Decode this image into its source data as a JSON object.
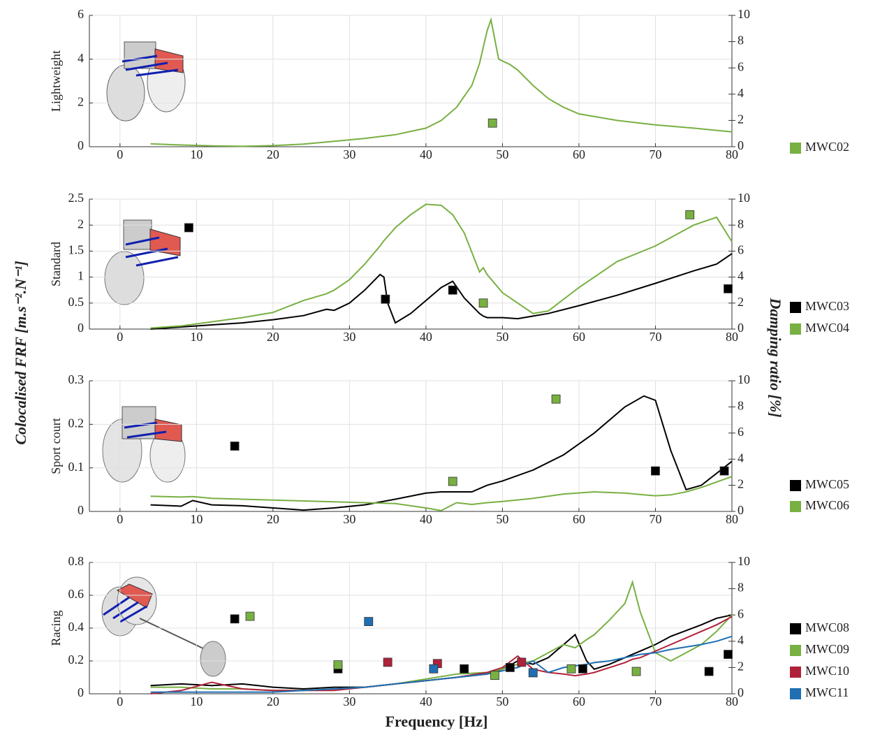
{
  "figure": {
    "xlabel": "Frequency [Hz]",
    "ylabel": "Colocalised FRF [m.s⁻².N⁻¹]",
    "y2label": "Damping ratio [%]"
  },
  "chart_data": [
    {
      "type": "line",
      "ylabel": "Lightweight",
      "xlim": [
        -4,
        80
      ],
      "xticks": [
        0,
        10,
        20,
        30,
        40,
        50,
        60,
        70,
        80
      ],
      "ylim": [
        0,
        6
      ],
      "yticks": [
        0,
        2,
        4,
        6
      ],
      "y2lim": [
        0,
        10
      ],
      "y2ticks": [
        0,
        2,
        4,
        6,
        8,
        10
      ],
      "grid": true,
      "x": [
        4,
        8,
        12,
        16,
        20,
        24,
        28,
        32,
        36,
        40,
        42,
        44,
        46,
        47,
        48,
        48.5,
        49.5,
        51,
        52,
        54,
        56,
        58,
        60,
        65,
        70,
        75,
        80
      ],
      "series": [
        {
          "name": "MWC02",
          "color": "#78b042",
          "values": [
            0.13,
            0.08,
            0.04,
            0.02,
            0.05,
            0.12,
            0.25,
            0.38,
            0.55,
            0.85,
            1.2,
            1.8,
            2.8,
            3.8,
            5.3,
            5.8,
            4.0,
            3.75,
            3.5,
            2.8,
            2.2,
            1.8,
            1.5,
            1.2,
            1.0,
            0.85,
            0.68
          ],
          "damping_x": [
            48.7
          ],
          "damping": [
            1.8
          ]
        }
      ]
    },
    {
      "type": "line",
      "ylabel": "Standard",
      "xlim": [
        -4,
        80
      ],
      "xticks": [
        0,
        10,
        20,
        30,
        40,
        50,
        60,
        70,
        80
      ],
      "ylim": [
        0,
        2.5
      ],
      "yticks": [
        0,
        0.5,
        1,
        1.5,
        2,
        2.5
      ],
      "y2lim": [
        0,
        10
      ],
      "y2ticks": [
        0,
        2,
        4,
        6,
        8,
        10
      ],
      "grid": true,
      "x": [
        4,
        8,
        12,
        16,
        20,
        24,
        27,
        28,
        30,
        32,
        34,
        34.5,
        35,
        36,
        38,
        40,
        42,
        43.5,
        45,
        47,
        47.5,
        48,
        50,
        52,
        54,
        56,
        60,
        65,
        70,
        75,
        78,
        80
      ],
      "series": [
        {
          "name": "MWC03",
          "color": "#000000",
          "values": [
            0.0,
            0.04,
            0.08,
            0.12,
            0.18,
            0.26,
            0.38,
            0.36,
            0.5,
            0.75,
            1.05,
            1.0,
            0.5,
            0.12,
            0.3,
            0.55,
            0.8,
            0.92,
            0.6,
            0.3,
            0.25,
            0.22,
            0.22,
            0.2,
            0.25,
            0.3,
            0.45,
            0.65,
            0.88,
            1.12,
            1.25,
            1.45
          ],
          "damping_x": [
            9,
            34.7,
            43.5,
            79.5
          ],
          "damping": [
            7.8,
            2.3,
            3.0,
            3.1
          ]
        },
        {
          "name": "MWC04",
          "color": "#78b042",
          "values": [
            0.02,
            0.06,
            0.14,
            0.22,
            0.32,
            0.55,
            0.68,
            0.75,
            0.95,
            1.25,
            1.6,
            1.7,
            1.78,
            1.95,
            2.2,
            2.4,
            2.38,
            2.2,
            1.85,
            1.1,
            1.18,
            1.05,
            0.7,
            0.5,
            0.3,
            0.35,
            0.8,
            1.3,
            1.6,
            2.0,
            2.15,
            1.68
          ],
          "damping_x": [
            47.5,
            74.5
          ],
          "damping": [
            2.0,
            8.8
          ]
        }
      ]
    },
    {
      "type": "line",
      "ylabel": "Sport court",
      "xlim": [
        -4,
        80
      ],
      "xticks": [
        0,
        10,
        20,
        30,
        40,
        50,
        60,
        70,
        80
      ],
      "ylim": [
        0,
        0.3
      ],
      "yticks": [
        0,
        0.1,
        0.2,
        0.3
      ],
      "y2lim": [
        0,
        10
      ],
      "y2ticks": [
        0,
        2,
        4,
        6,
        8,
        10
      ],
      "grid": true,
      "x": [
        4,
        8,
        9.5,
        12,
        16,
        20,
        24,
        28,
        32,
        36,
        40,
        42,
        44,
        46,
        48,
        50,
        54,
        58,
        62,
        66,
        68.5,
        70,
        72,
        74,
        76,
        80
      ],
      "series": [
        {
          "name": "MWC05",
          "color": "#000000",
          "values": [
            0.015,
            0.012,
            0.025,
            0.015,
            0.013,
            0.008,
            0.003,
            0.008,
            0.015,
            0.028,
            0.042,
            0.045,
            0.045,
            0.045,
            0.06,
            0.07,
            0.095,
            0.13,
            0.18,
            0.24,
            0.265,
            0.255,
            0.14,
            0.05,
            0.06,
            0.115
          ],
          "damping_x": [
            15,
            70,
            79
          ],
          "damping": [
            5.0,
            3.1,
            3.1
          ]
        },
        {
          "name": "MWC06",
          "color": "#78b042",
          "values": [
            0.035,
            0.033,
            0.034,
            0.03,
            0.028,
            0.026,
            0.024,
            0.022,
            0.02,
            0.018,
            0.008,
            0.002,
            0.02,
            0.016,
            0.02,
            0.023,
            0.03,
            0.04,
            0.045,
            0.042,
            0.038,
            0.036,
            0.038,
            0.045,
            0.055,
            0.08
          ],
          "damping_x": [
            43.5,
            57
          ],
          "damping": [
            2.3,
            8.6
          ]
        }
      ]
    },
    {
      "type": "line",
      "ylabel": "Racing",
      "xlim": [
        -4,
        80
      ],
      "xticks": [
        0,
        10,
        20,
        30,
        40,
        50,
        60,
        70,
        80
      ],
      "ylim": [
        0,
        0.8
      ],
      "yticks": [
        0,
        0.2,
        0.4,
        0.6,
        0.8
      ],
      "y2lim": [
        0,
        10
      ],
      "y2ticks": [
        0,
        2,
        4,
        6,
        8,
        10
      ],
      "grid": true,
      "x": [
        4,
        8,
        12,
        16,
        20,
        24,
        28,
        32,
        36,
        40,
        44,
        48,
        50,
        52,
        54,
        56,
        58,
        59.5,
        61,
        62,
        64,
        66,
        67,
        68,
        70,
        72,
        76,
        78,
        80
      ],
      "series": [
        {
          "name": "MWC08",
          "color": "#000000",
          "values": [
            0.05,
            0.06,
            0.05,
            0.06,
            0.04,
            0.03,
            0.04,
            0.04,
            0.06,
            0.08,
            0.1,
            0.12,
            0.15,
            0.2,
            0.18,
            0.22,
            0.3,
            0.36,
            0.2,
            0.15,
            0.18,
            0.22,
            0.24,
            0.26,
            0.3,
            0.35,
            0.42,
            0.46,
            0.48
          ],
          "damping_x": [
            15,
            28.5,
            45,
            51,
            60.5,
            77,
            79.5
          ],
          "damping": [
            5.7,
            1.9,
            1.9,
            2.0,
            1.9,
            1.7,
            3.0
          ]
        },
        {
          "name": "MWC09",
          "color": "#78b042",
          "values": [
            0.04,
            0.04,
            0.03,
            0.03,
            0.02,
            0.02,
            0.03,
            0.04,
            0.06,
            0.09,
            0.12,
            0.13,
            0.15,
            0.18,
            0.2,
            0.25,
            0.3,
            0.28,
            0.33,
            0.36,
            0.45,
            0.55,
            0.68,
            0.5,
            0.25,
            0.2,
            0.3,
            0.38,
            0.48
          ],
          "damping_x": [
            17,
            28.5,
            49,
            59,
            67.5
          ],
          "damping": [
            5.9,
            2.2,
            1.4,
            1.9,
            1.7
          ]
        },
        {
          "name": "MWC10",
          "color": "#b0213a",
          "values": [
            0.0,
            0.02,
            0.07,
            0.03,
            0.02,
            0.02,
            0.02,
            0.04,
            0.06,
            0.08,
            0.1,
            0.13,
            0.16,
            0.23,
            0.15,
            0.13,
            0.12,
            0.11,
            0.12,
            0.13,
            0.16,
            0.19,
            0.21,
            0.22,
            0.26,
            0.3,
            0.38,
            0.42,
            0.47
          ],
          "damping_x": [
            35,
            41.5,
            52.5
          ],
          "damping": [
            2.4,
            2.3,
            2.4
          ]
        },
        {
          "name": "MWC11",
          "color": "#1f6fb2",
          "values": [
            0.01,
            0.01,
            0.01,
            0.01,
            0.01,
            0.02,
            0.03,
            0.04,
            0.06,
            0.08,
            0.1,
            0.12,
            0.14,
            0.16,
            0.2,
            0.13,
            0.16,
            0.17,
            0.18,
            0.19,
            0.2,
            0.22,
            0.23,
            0.24,
            0.25,
            0.27,
            0.3,
            0.32,
            0.35
          ],
          "damping_x": [
            32.5,
            41,
            54
          ],
          "damping": [
            5.5,
            1.9,
            1.6
          ]
        }
      ]
    }
  ]
}
